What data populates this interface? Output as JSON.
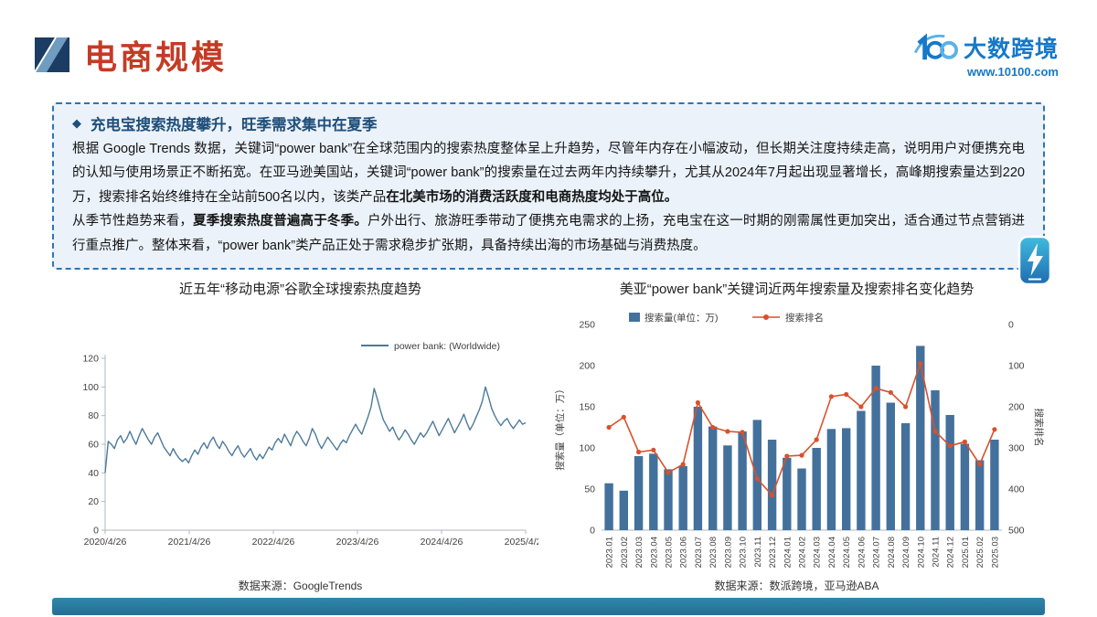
{
  "colors": {
    "accent_red": "#c43b25",
    "deep_navy": "#1b3c63",
    "brand_blue": "#1678c8",
    "box_border_blue": "#2e74b5",
    "box_bg": "#ebf2fa",
    "box_title_blue": "#1f4e79",
    "footer_teal": "#2b7da2"
  },
  "header": {
    "title": "电商规模",
    "brand": "大数跨境",
    "website": "www.10100.com"
  },
  "callout": {
    "bullet_icon": "◆",
    "title": "充电宝搜索热度攀升，旺季需求集中在夏季",
    "power_icon": "lightning-power-bank",
    "paragraphs": [
      [
        {
          "text": "根据 Google Trends 数据，关键词“power bank”在全球范围内的搜索热度整体呈上升趋势，尽管年内存在小幅波动，但长期关注度持续走高，说明用户对便携充电的认知与使用场景正不断拓宽。在亚马逊美国站，关键词“power bank”的搜索量在过去两年内持续攀升，尤其从2024年7月起出现显著增长，高峰期搜索量达到220万，搜索排名始终维持在全站前500名以内，该类产品",
          "bold": false
        },
        {
          "text": "在北美市场的消费活跃度和电商热度均处于高位。",
          "bold": true
        }
      ],
      [
        {
          "text": "从季节性趋势来看，",
          "bold": false
        },
        {
          "text": "夏季搜索热度普遍高于冬季。",
          "bold": true
        },
        {
          "text": "户外出行、旅游旺季带动了便携充电需求的上扬，充电宝在这一时期的刚需属性更加突出，适合通过节点营销进行重点推广。整体来看，“power bank”类产品正处于需求稳步扩张期，具备持续出海的市场基础与消费热度。",
          "bold": false
        }
      ]
    ]
  },
  "chart_data": [
    {
      "type": "line",
      "title": "近五年“移动电源”谷歌全球搜索热度趋势",
      "source": "数据来源：GoogleTrends",
      "ylim": [
        0,
        120
      ],
      "yticks": [
        0,
        20,
        40,
        60,
        80,
        100,
        120
      ],
      "x_tick_labels": [
        "2020/4/26",
        "2021/4/26",
        "2022/4/26",
        "2023/4/26",
        "2024/4/26",
        "2025/4/26"
      ],
      "grid": false,
      "legend_position": "top-right",
      "series": [
        {
          "name": "power bank: (Worldwide)",
          "color": "#4d7a99",
          "values": [
            40,
            62,
            60,
            57,
            63,
            66,
            61,
            64,
            69,
            64,
            60,
            66,
            71,
            67,
            63,
            60,
            65,
            68,
            63,
            58,
            55,
            52,
            57,
            53,
            50,
            48,
            50,
            47,
            52,
            56,
            53,
            58,
            61,
            57,
            62,
            65,
            60,
            57,
            62,
            59,
            55,
            52,
            56,
            59,
            54,
            51,
            54,
            57,
            52,
            49,
            53,
            50,
            54,
            58,
            56,
            61,
            64,
            61,
            67,
            63,
            59,
            65,
            69,
            66,
            62,
            59,
            64,
            71,
            67,
            61,
            57,
            61,
            65,
            62,
            59,
            56,
            60,
            63,
            61,
            66,
            70,
            74,
            70,
            67,
            73,
            79,
            86,
            99,
            92,
            84,
            77,
            73,
            69,
            72,
            67,
            63,
            66,
            70,
            67,
            63,
            60,
            64,
            68,
            65,
            68,
            72,
            76,
            71,
            66,
            70,
            74,
            78,
            73,
            68,
            72,
            76,
            81,
            75,
            70,
            74,
            79,
            84,
            90,
            100,
            93,
            85,
            80,
            76,
            73,
            76,
            78,
            74,
            71,
            74,
            77,
            74,
            75
          ]
        }
      ]
    },
    {
      "type": "bar+line",
      "title": "美亚“power bank”关键词近两年搜索量及搜索排名变化趋势",
      "source": "数据来源：数派跨境，亚马逊ABA",
      "categories": [
        "2023.01",
        "2023.02",
        "2023.03",
        "2023.04",
        "2023.05",
        "2023.06",
        "2023.07",
        "2023.08",
        "2023.09",
        "2023.10",
        "2023.11",
        "2023.12",
        "2024.01",
        "2024.02",
        "2024.03",
        "2024.04",
        "2024.05",
        "2024.06",
        "2024.07",
        "2024.08",
        "2024.09",
        "2024.10",
        "2024.11",
        "2024.12",
        "2025.01",
        "2025.02",
        "2025.03"
      ],
      "left_axis": {
        "label": "搜索量（单位：万）",
        "min": 0,
        "max": 250,
        "ticks": [
          0,
          50,
          100,
          150,
          200,
          250
        ],
        "inverted": false
      },
      "right_axis": {
        "label": "搜索排名",
        "min": 0,
        "max": 500,
        "ticks": [
          0,
          100,
          200,
          300,
          400,
          500
        ],
        "inverted": true
      },
      "grid": false,
      "legend_position": "top",
      "series": [
        {
          "name": "搜索量(单位：万)",
          "type": "bar",
          "axis": "left",
          "color": "#44719c",
          "values": [
            57,
            48,
            90,
            93,
            74,
            78,
            150,
            126,
            103,
            120,
            134,
            110,
            88,
            75,
            100,
            123,
            124,
            145,
            200,
            155,
            130,
            224,
            170,
            140,
            105,
            85,
            110
          ]
        },
        {
          "name": "搜索排名",
          "type": "line",
          "axis": "right",
          "color": "#d8512c",
          "values": [
            250,
            225,
            310,
            305,
            360,
            340,
            190,
            250,
            260,
            262,
            375,
            415,
            320,
            318,
            280,
            175,
            170,
            200,
            155,
            165,
            200,
            95,
            260,
            295,
            285,
            340,
            255
          ]
        }
      ]
    }
  ]
}
